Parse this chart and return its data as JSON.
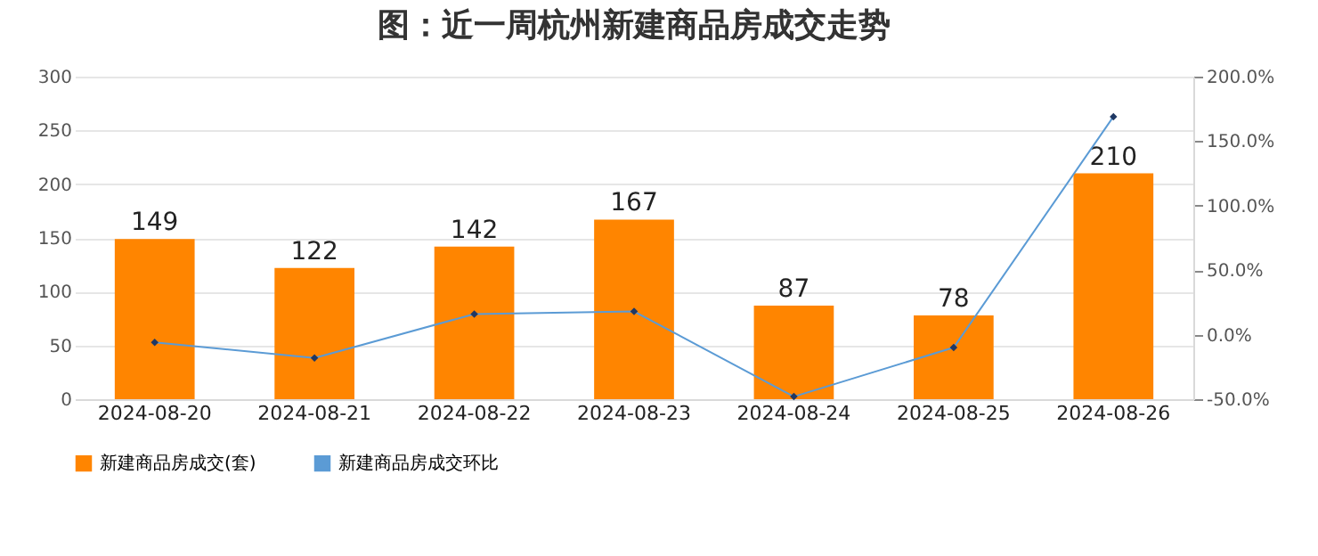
{
  "chart_data": {
    "type": "bar",
    "title": "图：近一周杭州新建商品房成交走势",
    "categories": [
      "2024-08-20",
      "2024-08-21",
      "2024-08-22",
      "2024-08-23",
      "2024-08-24",
      "2024-08-25",
      "2024-08-26"
    ],
    "series": [
      {
        "name": "新建商品房成交(套)",
        "color": "#ff8500",
        "values": [
          149,
          122,
          142,
          167,
          87,
          78,
          210
        ],
        "value_labels": [
          "149",
          "122",
          "142",
          "167",
          "87",
          "78",
          "210"
        ]
      },
      {
        "name": "新建商品房成交环比",
        "type": "line",
        "axis": "y2",
        "color": "#5b9bd5",
        "values": [
          -6,
          -18,
          16,
          18,
          -48,
          -10,
          169
        ]
      }
    ],
    "ylim": [
      0,
      300
    ],
    "yticks": [
      0,
      50,
      100,
      150,
      200,
      250,
      300
    ],
    "y2lim": [
      -50,
      200
    ],
    "y2ticks": [
      {
        "value": -50,
        "label": "-50.0%"
      },
      {
        "value": 0,
        "label": "0.0%"
      },
      {
        "value": 50,
        "label": "50.0%"
      },
      {
        "value": 100,
        "label": "100.0%"
      },
      {
        "value": 150,
        "label": "150.0%"
      },
      {
        "value": 200,
        "label": "200.0%"
      }
    ],
    "grid": "y",
    "legend": "bottom",
    "marker": "diamond",
    "line_style": "solid"
  }
}
